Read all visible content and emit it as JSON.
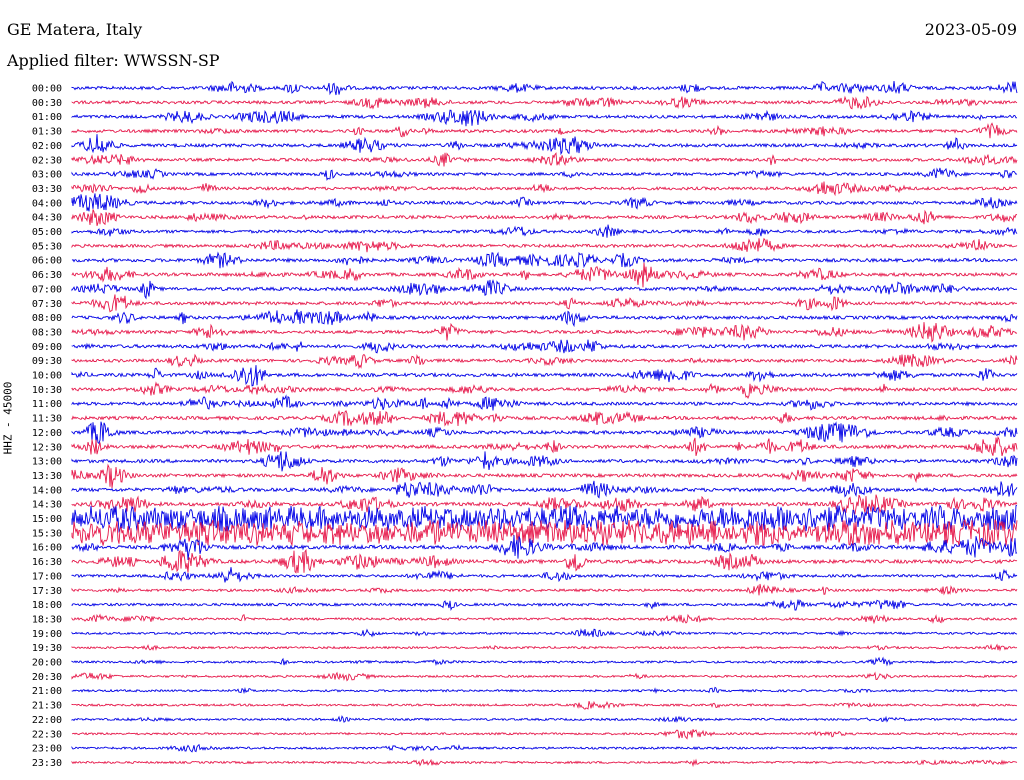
{
  "header": {
    "station": "GE Matera, Italy",
    "date": "2023-05-09",
    "filter": "Applied filter: WWSSN-SP"
  },
  "chart_data": {
    "type": "line",
    "title": "GE Matera, Italy",
    "subtitle": "Applied filter: WWSSN-SP",
    "ylabel": "HHZ - 45000",
    "colors": [
      "#0000e6",
      "#e6194b"
    ],
    "y_tick_labels": [
      "00:00",
      "00:30",
      "01:00",
      "01:30",
      "02:00",
      "02:30",
      "03:00",
      "03:30",
      "04:00",
      "04:30",
      "05:00",
      "05:30",
      "06:00",
      "06:30",
      "07:00",
      "07:30",
      "08:00",
      "08:30",
      "09:00",
      "09:30",
      "10:00",
      "10:30",
      "11:00",
      "11:30",
      "12:00",
      "12:30",
      "13:00",
      "13:30",
      "14:00",
      "14:30",
      "15:00",
      "15:30",
      "16:00",
      "16:30",
      "17:00",
      "17:30",
      "18:00",
      "18:30",
      "19:00",
      "19:30",
      "20:00",
      "20:30",
      "21:00",
      "21:30",
      "22:00",
      "22:30",
      "23:00",
      "23:30"
    ],
    "activity_level": [
      0.55,
      0.5,
      0.5,
      0.5,
      0.55,
      0.45,
      0.45,
      0.45,
      0.55,
      0.55,
      0.45,
      0.5,
      0.6,
      0.6,
      0.6,
      0.55,
      0.6,
      0.55,
      0.6,
      0.5,
      0.6,
      0.55,
      0.55,
      0.6,
      0.6,
      0.65,
      0.6,
      0.6,
      0.65,
      0.7,
      1.0,
      1.0,
      0.75,
      0.7,
      0.35,
      0.25,
      0.3,
      0.2,
      0.12,
      0.1,
      0.12,
      0.1,
      0.1,
      0.1,
      0.1,
      0.1,
      0.12,
      0.1
    ]
  }
}
